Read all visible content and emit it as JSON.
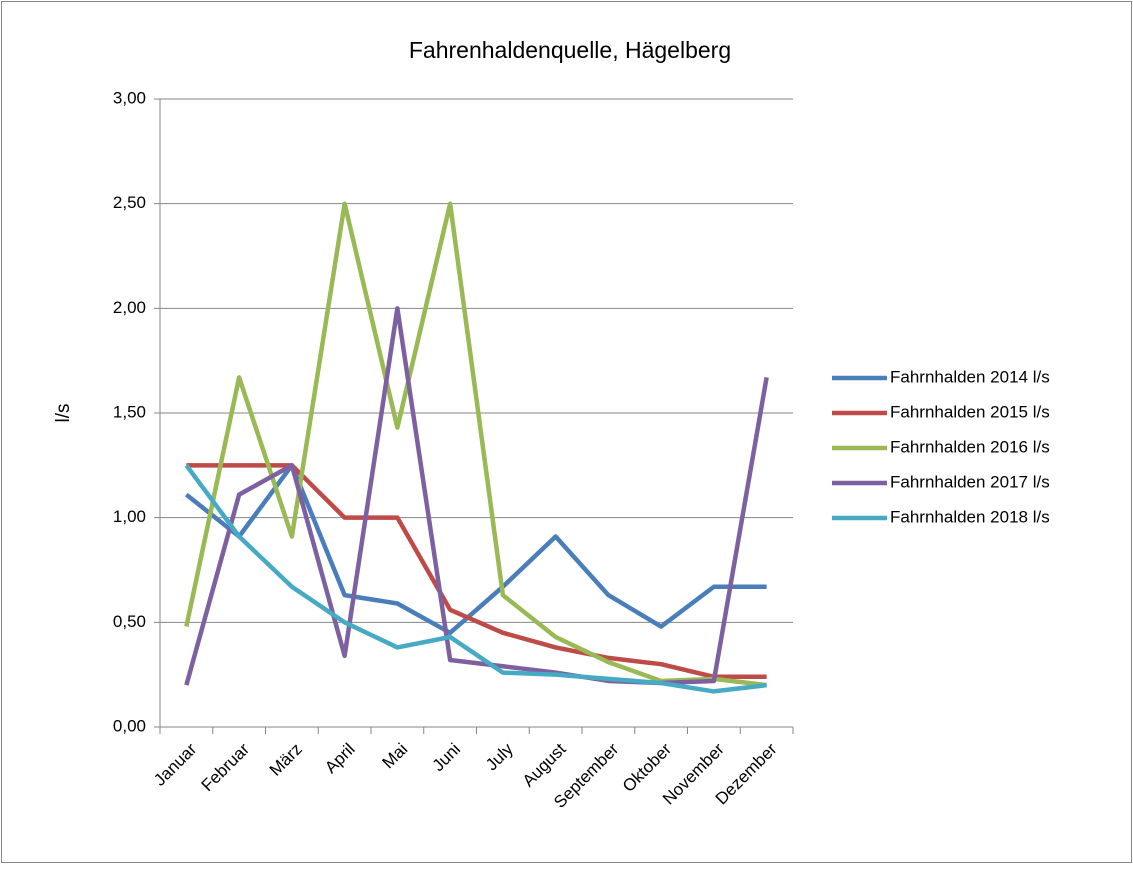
{
  "chart_data": {
    "type": "line",
    "title": "Fahrenhaldenquelle, Hägelberg",
    "y_label": "l/s",
    "categories": [
      "Januar",
      "Februar",
      "März",
      "April",
      "Mai",
      "Juni",
      "July",
      "August",
      "September",
      "Oktober",
      "November",
      "Dezember"
    ],
    "series": [
      {
        "name": "Fahrnhalden 2014 l/s",
        "color": "#4a7ebb",
        "values": [
          1.11,
          0.91,
          1.25,
          0.63,
          0.59,
          0.45,
          0.67,
          0.91,
          0.63,
          0.48,
          0.67,
          0.67
        ]
      },
      {
        "name": "Fahrnhalden 2015 l/s",
        "color": "#be4b48",
        "values": [
          1.25,
          1.25,
          1.25,
          1.0,
          1.0,
          0.56,
          0.45,
          0.38,
          0.33,
          0.3,
          0.24,
          0.24
        ]
      },
      {
        "name": "Fahrnhalden 2016 l/s",
        "color": "#98b954",
        "values": [
          0.48,
          1.67,
          0.91,
          2.5,
          1.43,
          2.5,
          0.63,
          0.43,
          0.31,
          0.22,
          0.23,
          0.2
        ]
      },
      {
        "name": "Fahrnhalden 2017 l/s",
        "color": "#7d60a0",
        "values": [
          0.2,
          1.11,
          1.25,
          0.34,
          2.0,
          0.32,
          0.29,
          0.26,
          0.22,
          0.21,
          0.22,
          1.67
        ]
      },
      {
        "name": "Fahrnhalden 2018 l/s",
        "color": "#46aac5",
        "values": [
          1.25,
          0.91,
          0.67,
          0.5,
          0.38,
          0.43,
          0.26,
          0.25,
          0.23,
          0.21,
          0.17,
          0.2
        ]
      }
    ],
    "ylim": [
      0,
      3
    ],
    "yticks": [
      {
        "value": 0,
        "label": "0,00"
      },
      {
        "value": 0.5,
        "label": "0,50"
      },
      {
        "value": 1,
        "label": "1,00"
      },
      {
        "value": 1.5,
        "label": "1,50"
      },
      {
        "value": 2,
        "label": "2,00"
      },
      {
        "value": 2.5,
        "label": "2,50"
      },
      {
        "value": 3,
        "label": "3,00"
      }
    ],
    "grid": true,
    "legend": "right"
  }
}
